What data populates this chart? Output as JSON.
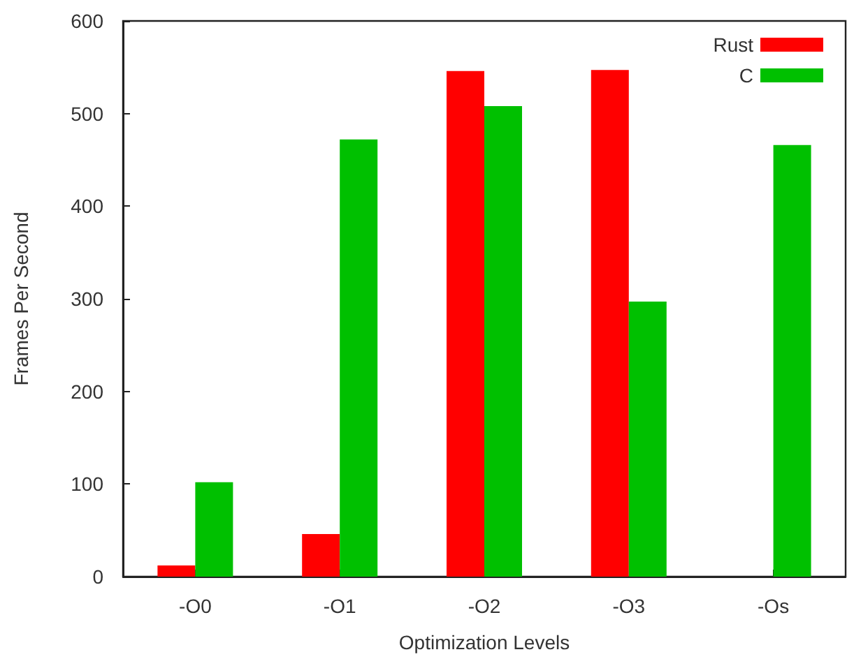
{
  "chart_data": {
    "type": "bar",
    "xlabel": "Optimization Levels",
    "ylabel": "Frames Per Second",
    "categories": [
      "-O0",
      "-O1",
      "-O2",
      "-O3",
      "-Os"
    ],
    "series": [
      {
        "name": "Rust",
        "color": "#ff0000",
        "values": [
          12,
          46,
          546,
          547,
          null
        ]
      },
      {
        "name": "C",
        "color": "#00c000",
        "values": [
          102,
          472,
          508,
          297,
          466
        ]
      }
    ],
    "ylim": [
      0,
      600
    ],
    "yticks": [
      0,
      100,
      200,
      300,
      400,
      500,
      600
    ],
    "grid": false,
    "legend": "top right"
  }
}
